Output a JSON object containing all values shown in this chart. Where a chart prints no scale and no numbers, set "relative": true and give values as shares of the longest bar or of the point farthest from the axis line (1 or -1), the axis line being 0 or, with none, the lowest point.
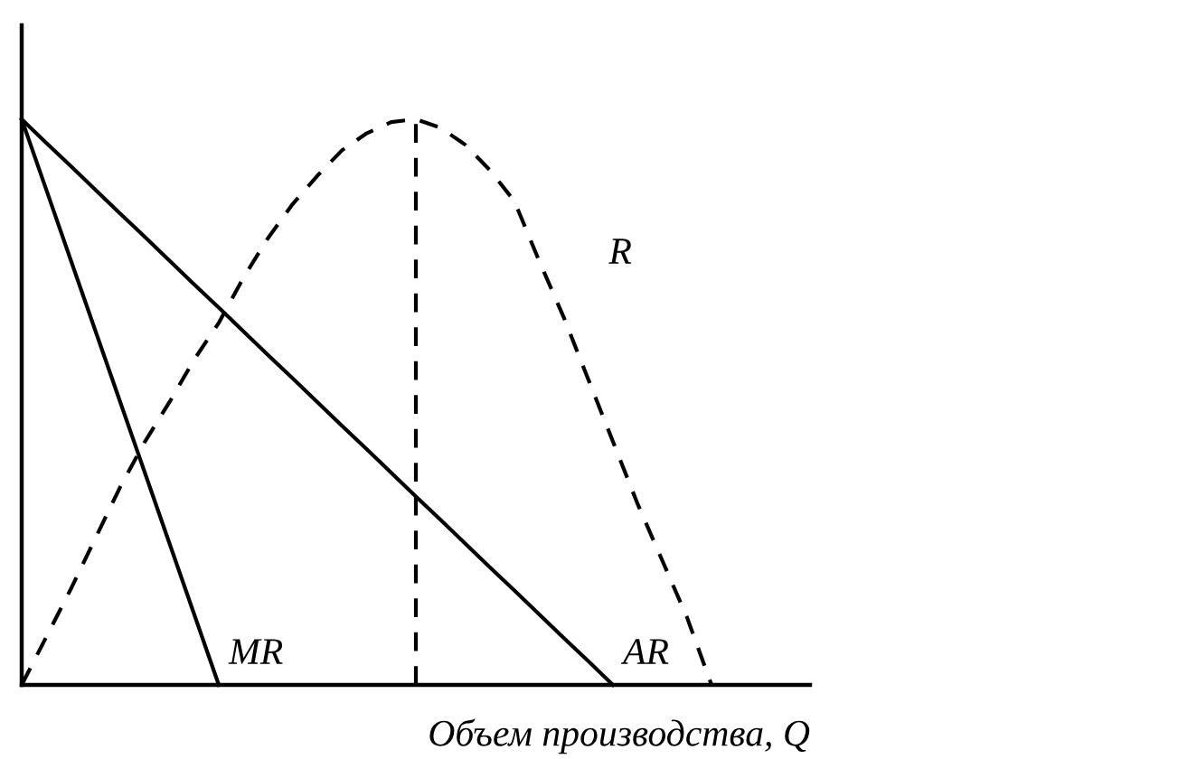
{
  "chart_data": {
    "type": "line",
    "relative": true,
    "xlabel": "Объем производства, Q",
    "legend": false,
    "categories": [
      null,
      null,
      null,
      null,
      null,
      null,
      null,
      null,
      null,
      null,
      null,
      null,
      null,
      null,
      null,
      null,
      null,
      null,
      null,
      null,
      null,
      null,
      null,
      null,
      null,
      null,
      null,
      null,
      null,
      null,
      null,
      null,
      null
    ],
    "series": [
      {
        "name": "MR",
        "color": "#000000",
        "line_style": "solid",
        "values": [
          1,
          0.875,
          0.75,
          0.625,
          0.5,
          0.375,
          0.25,
          0.125,
          0,
          null,
          null,
          null,
          null,
          null,
          null,
          null,
          null,
          null,
          null,
          null,
          null,
          null,
          null,
          null,
          null,
          null,
          null,
          null,
          null,
          null,
          null,
          null,
          null
        ]
      },
      {
        "name": "AR",
        "color": "#000000",
        "line_style": "solid",
        "values": [
          1,
          0.958,
          0.917,
          0.875,
          0.833,
          0.792,
          0.75,
          0.708,
          0.667,
          0.625,
          0.583,
          0.542,
          0.5,
          0.458,
          0.417,
          0.375,
          0.333,
          0.292,
          0.25,
          0.208,
          0.167,
          0.125,
          0.083,
          0.042,
          0,
          null,
          null,
          null,
          null,
          null,
          null,
          null,
          null
        ]
      },
      {
        "name": "R",
        "color": "#000000",
        "line_style": "dashed",
        "values": [
          0,
          0.085,
          0.17,
          0.26,
          0.35,
          0.43,
          0.5,
          0.575,
          0.64,
          0.72,
          0.79,
          0.85,
          0.9,
          0.945,
          0.975,
          0.995,
          1,
          0.985,
          0.955,
          0.91,
          0.855,
          0.75,
          0.65,
          0.54,
          0.43,
          0.32,
          0.22,
          0.12,
          0,
          null,
          null,
          null,
          null
        ]
      }
    ]
  }
}
